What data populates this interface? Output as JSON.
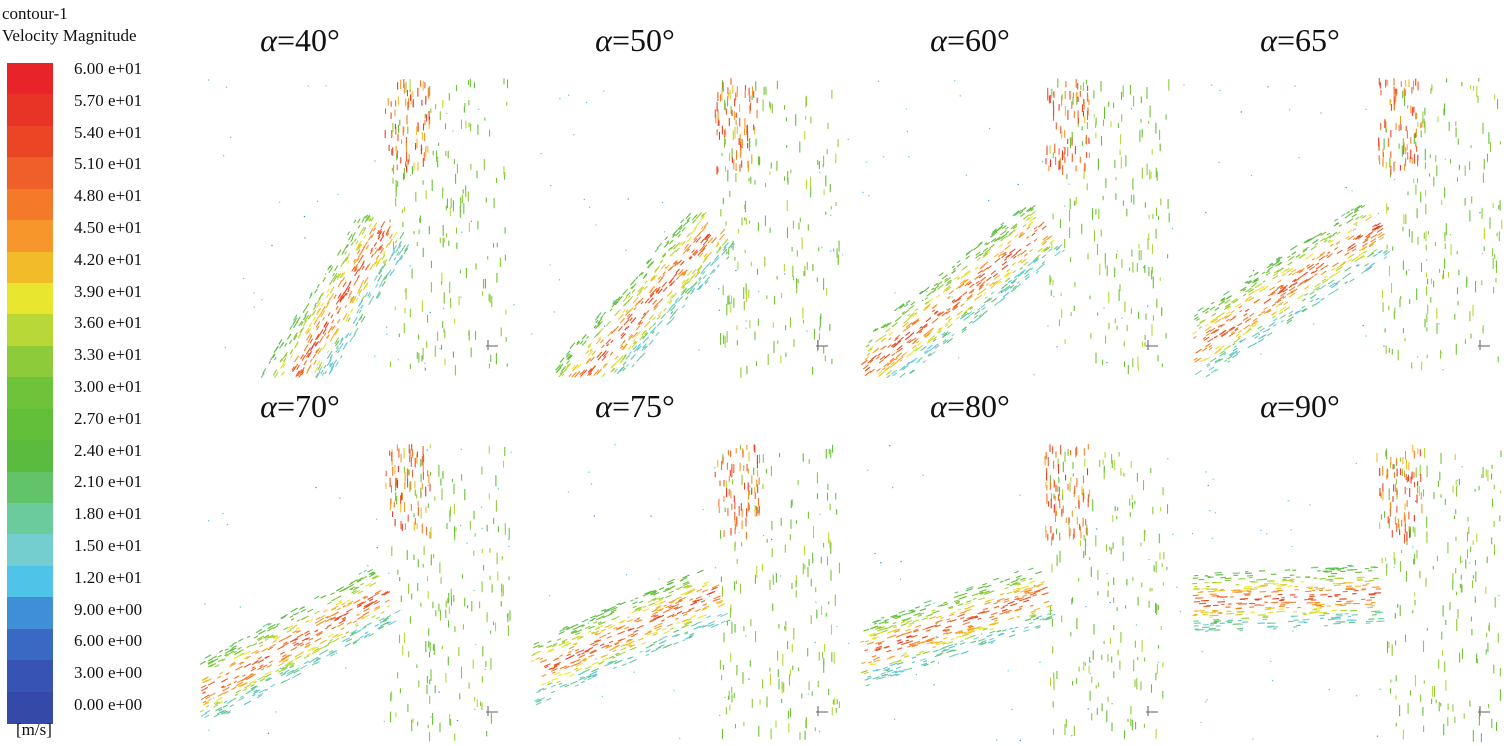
{
  "legend": {
    "title_line1": "contour-1",
    "title_line2": "Velocity Magnitude",
    "unit": "[m/s]",
    "ticks": [
      "6.00 e+01",
      "5.70 e+01",
      "5.40 e+01",
      "5.10 e+01",
      "4.80 e+01",
      "4.50 e+01",
      "4.20 e+01",
      "3.90 e+01",
      "3.60 e+01",
      "3.30 e+01",
      "3.00 e+01",
      "2.70 e+01",
      "2.40 e+01",
      "2.10 e+01",
      "1.80 e+01",
      "1.50 e+01",
      "1.20 e+01",
      "9.00 e+00",
      "6.00 e+00",
      "3.00 e+00",
      "0.00 e+00"
    ],
    "colors": [
      "#e8242a",
      "#e83327",
      "#ea4626",
      "#ee5f2a",
      "#f47a2a",
      "#f7962a",
      "#f2bb2a",
      "#e9e62f",
      "#b7d836",
      "#8dcb3a",
      "#6fc33a",
      "#63bf3a",
      "#5bbb3e",
      "#62c36a",
      "#6bcb9c",
      "#74cdcf",
      "#50c3e9",
      "#3f8fd6",
      "#3a69c3",
      "#3753b3",
      "#3449a8"
    ]
  },
  "panels": [
    {
      "symbol": "α",
      "value": "=40°",
      "angle": 40
    },
    {
      "symbol": "α",
      "value": "=50°",
      "angle": 50
    },
    {
      "symbol": "α",
      "value": "=60°",
      "angle": 60
    },
    {
      "symbol": "α",
      "value": "=65°",
      "angle": 65
    },
    {
      "symbol": "α",
      "value": "=70°",
      "angle": 70
    },
    {
      "symbol": "α",
      "value": "=75°",
      "angle": 75
    },
    {
      "symbol": "α",
      "value": "=80°",
      "angle": 80
    },
    {
      "symbol": "α",
      "value": "=90°",
      "angle": 90
    }
  ]
}
